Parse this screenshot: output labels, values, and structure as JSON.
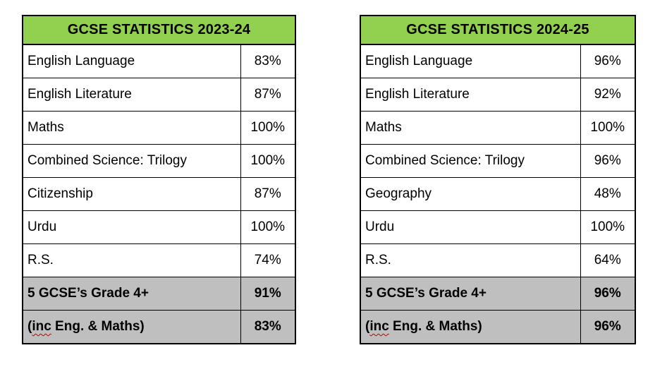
{
  "colors": {
    "header_green": "#92D050",
    "summary_gray": "#BFBFBF",
    "border_black": "#000000",
    "text_black": "#000000",
    "squiggle_red": "#C00000"
  },
  "tables": [
    {
      "title": "GCSE STATISTICS 2023-24",
      "rows": [
        {
          "subject": "English Language",
          "value": "83%"
        },
        {
          "subject": "English Literature",
          "value": "87%"
        },
        {
          "subject": "Maths",
          "value": "100%"
        },
        {
          "subject": "Combined Science: Trilogy",
          "value": "100%"
        },
        {
          "subject": "Citizenship",
          "value": "87%"
        },
        {
          "subject": "Urdu",
          "value": "100%"
        },
        {
          "subject": "R.S.",
          "value": "74%"
        }
      ],
      "summary_rows": [
        {
          "subject": "5 GCSE’s Grade 4+",
          "value": "91%"
        },
        {
          "subject_prefix": "(",
          "subject_squiggle": "inc",
          "subject_suffix": " Eng. & Maths)",
          "value": "83%"
        }
      ]
    },
    {
      "title": "GCSE STATISTICS 2024-25",
      "rows": [
        {
          "subject": "English Language",
          "value": "96%"
        },
        {
          "subject": "English Literature",
          "value": "92%"
        },
        {
          "subject": "Maths",
          "value": "100%"
        },
        {
          "subject": "Combined Science: Trilogy",
          "value": "96%"
        },
        {
          "subject": "Geography",
          "value": "48%"
        },
        {
          "subject": "Urdu",
          "value": "100%"
        },
        {
          "subject": "R.S.",
          "value": "64%"
        }
      ],
      "summary_rows": [
        {
          "subject": "5 GCSE’s Grade 4+",
          "value": "96%"
        },
        {
          "subject_prefix": "(",
          "subject_squiggle": "inc",
          "subject_suffix": " Eng. & Maths)",
          "value": "96%"
        }
      ]
    }
  ]
}
